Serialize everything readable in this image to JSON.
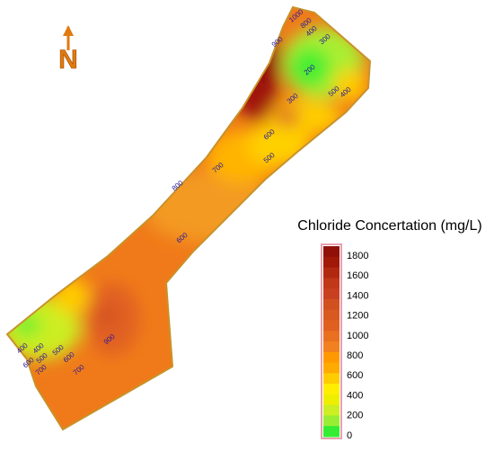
{
  "north_label": "N",
  "legend": {
    "title": "Chloride Concertation (mg/L)",
    "ticks": [
      "1800",
      "1600",
      "1400",
      "1200",
      "1000",
      "800",
      "600",
      "400",
      "200",
      "0"
    ],
    "colors": [
      "#901008",
      "#a01808",
      "#b02810",
      "#c03818",
      "#c84020",
      "#d05020",
      "#d85a20",
      "#e06020",
      "#e87020",
      "#f08020",
      "#ff9900",
      "#ffaa00",
      "#ffcc00",
      "#ffee00",
      "#eeee00",
      "#ccee22",
      "#99ee33",
      "#33ee33"
    ]
  },
  "contour_labels": [
    "1000",
    "800",
    "400",
    "300",
    "900",
    "200",
    "500",
    "400",
    "300",
    "600",
    "500",
    "700",
    "800",
    "600",
    "900",
    "400",
    "400",
    "500",
    "500",
    "600",
    "700",
    "600",
    "700"
  ]
}
